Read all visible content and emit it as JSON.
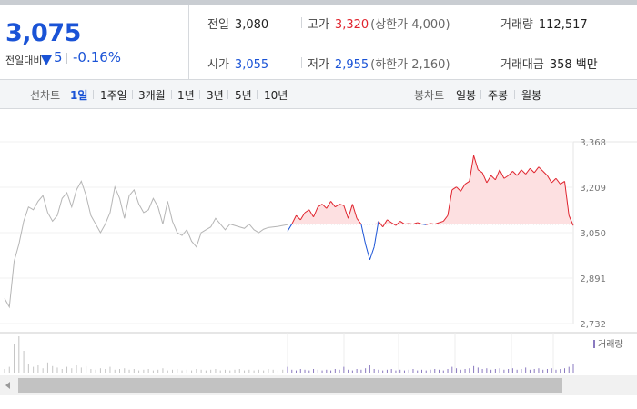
{
  "summary": {
    "price": "3,075",
    "change_label": "전일대비",
    "change_value": "5",
    "change_pct": "-0.16%",
    "colors": {
      "down": "#1a53d6",
      "up": "#e0232d"
    }
  },
  "info": {
    "prev_close": {
      "label": "전일",
      "value": "3,080"
    },
    "high": {
      "label": "고가",
      "value": "3,320",
      "sub": "(상한가 4,000)"
    },
    "volume": {
      "label": "거래량",
      "value": "112,517"
    },
    "open": {
      "label": "시가",
      "value": "3,055"
    },
    "low": {
      "label": "저가",
      "value": "2,955",
      "sub": "(하한가 2,160)"
    },
    "amount": {
      "label": "거래대금",
      "value": "358 백만"
    }
  },
  "controls": {
    "line_chart_label": "선차트",
    "periods": [
      "1일",
      "1주일",
      "3개월",
      "1년",
      "3년",
      "5년",
      "10년"
    ],
    "selected_period": "1일",
    "candle_chart_label": "봉차트",
    "candle_periods": [
      "일봉",
      "주봉",
      "월봉"
    ]
  },
  "chart_data": {
    "type": "area",
    "y_ticks": [
      "3,368",
      "3,209",
      "3,050",
      "2,891",
      "2,732"
    ],
    "ylim": [
      2732,
      3368
    ],
    "baseline": 3080,
    "volume_legend": "거래량",
    "prev_session": [
      2820,
      2790,
      2950,
      3010,
      3090,
      3140,
      3130,
      3160,
      3180,
      3120,
      3090,
      3110,
      3170,
      3190,
      3140,
      3200,
      3230,
      3180,
      3110,
      3080,
      3050,
      3080,
      3120,
      3210,
      3170,
      3100,
      3180,
      3200,
      3150,
      3120,
      3130,
      3170,
      3140,
      3080,
      3160,
      3090,
      3050,
      3040,
      3060,
      3020,
      3000,
      3050,
      3060,
      3070,
      3100,
      3080,
      3060,
      3080,
      3075,
      3070,
      3065,
      3080,
      3060,
      3050,
      3062,
      3068,
      3070,
      3072,
      3075,
      3078
    ],
    "today_session": [
      3055,
      3080,
      3110,
      3095,
      3120,
      3130,
      3105,
      3140,
      3150,
      3135,
      3160,
      3140,
      3150,
      3145,
      3100,
      3150,
      3100,
      3080,
      3010,
      2955,
      3000,
      3090,
      3070,
      3095,
      3085,
      3075,
      3090,
      3080,
      3082,
      3080,
      3085,
      3080,
      3078,
      3082,
      3080,
      3085,
      3090,
      3110,
      3200,
      3210,
      3195,
      3220,
      3230,
      3320,
      3270,
      3260,
      3225,
      3250,
      3235,
      3270,
      3240,
      3250,
      3265,
      3250,
      3270,
      3255,
      3275,
      3260,
      3280,
      3265,
      3250,
      3225,
      3240,
      3220,
      3230,
      3110,
      3075
    ],
    "prev_volume": [
      5,
      8,
      40,
      50,
      30,
      12,
      8,
      10,
      6,
      14,
      9,
      7,
      5,
      8,
      6,
      10,
      7,
      9,
      5,
      4,
      6,
      5,
      8,
      4,
      5,
      6,
      4,
      5,
      3,
      4,
      5,
      3,
      4,
      6,
      3,
      4,
      5,
      3,
      4,
      3,
      5,
      4,
      3,
      4,
      5,
      3,
      4,
      3,
      4,
      5,
      3,
      4,
      3,
      4,
      3,
      5,
      4,
      3,
      4,
      3
    ],
    "today_volume": [
      8,
      4,
      3,
      5,
      4,
      3,
      5,
      4,
      3,
      4,
      3,
      5,
      4,
      8,
      4,
      3,
      5,
      4,
      6,
      10,
      5,
      4,
      3,
      4,
      5,
      3,
      4,
      3,
      4,
      5,
      3,
      4,
      3,
      4,
      5,
      4,
      3,
      5,
      8,
      6,
      4,
      5,
      6,
      9,
      7,
      5,
      6,
      4,
      5,
      6,
      4,
      5,
      6,
      4,
      5,
      7,
      4,
      5,
      6,
      4,
      5,
      6,
      4,
      5,
      6,
      8,
      12
    ]
  }
}
